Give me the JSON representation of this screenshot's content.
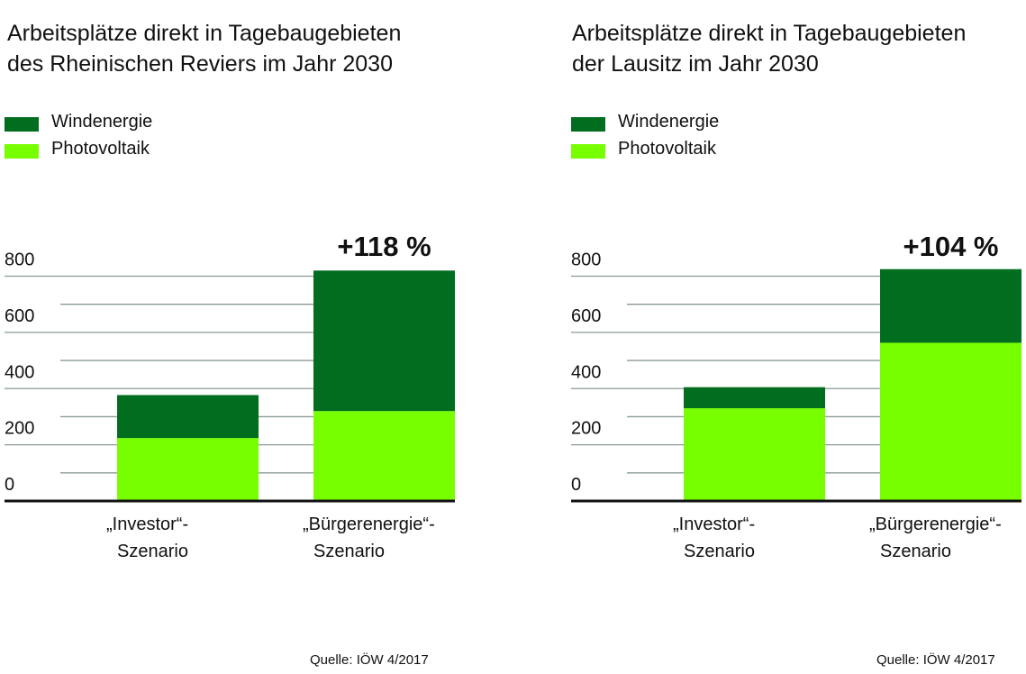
{
  "colors": {
    "wind": "#006e1e",
    "pv": "#77ff00",
    "grid": "#8a9a94",
    "axis": "#111111"
  },
  "chart_data": [
    {
      "type": "bar",
      "stacked": true,
      "title": "Arbeitsplätze direkt in Tagebaugebieten des Rheinischen Reviers im Jahr 2030",
      "title_lines": [
        "Arbeitsplätze direkt in Tagebaugebieten",
        "des Rheinischen Reviers im Jahr 2030"
      ],
      "categories": [
        [
          "„Investor“-",
          "Szenario"
        ],
        [
          "„Bürgerenergie“-",
          "Szenario"
        ]
      ],
      "series": [
        {
          "name": "Windenergie",
          "values": [
            153,
            500
          ]
        },
        {
          "name": "Photovoltaik",
          "values": [
            224,
            320
          ]
        }
      ],
      "annotations": [
        "",
        "+118 %"
      ],
      "yticks": [
        "0",
        "200",
        "400",
        "600",
        "800"
      ],
      "ylim": [
        0,
        800
      ],
      "grid": true,
      "legend": "top-left",
      "source": "Quelle: IÖW 4/2017"
    },
    {
      "type": "bar",
      "stacked": true,
      "title": "Arbeitsplätze direkt in Tagebaugebieten der Lausitz im Jahr 2030",
      "title_lines": [
        "Arbeitsplätze direkt in Tagebaugebieten",
        "der Lausitz im Jahr 2030"
      ],
      "categories": [
        [
          "„Investor“-",
          "Szenario"
        ],
        [
          "„Bürgerenergie“-",
          "Szenario"
        ]
      ],
      "series": [
        {
          "name": "Windenergie",
          "values": [
            75,
            262
          ]
        },
        {
          "name": "Photovoltaik",
          "values": [
            330,
            563
          ]
        }
      ],
      "annotations": [
        "",
        "+104 %"
      ],
      "yticks": [
        "0",
        "200",
        "400",
        "600",
        "800"
      ],
      "ylim": [
        0,
        800
      ],
      "grid": true,
      "legend": "top-left",
      "source": "Quelle: IÖW 4/2017"
    }
  ]
}
